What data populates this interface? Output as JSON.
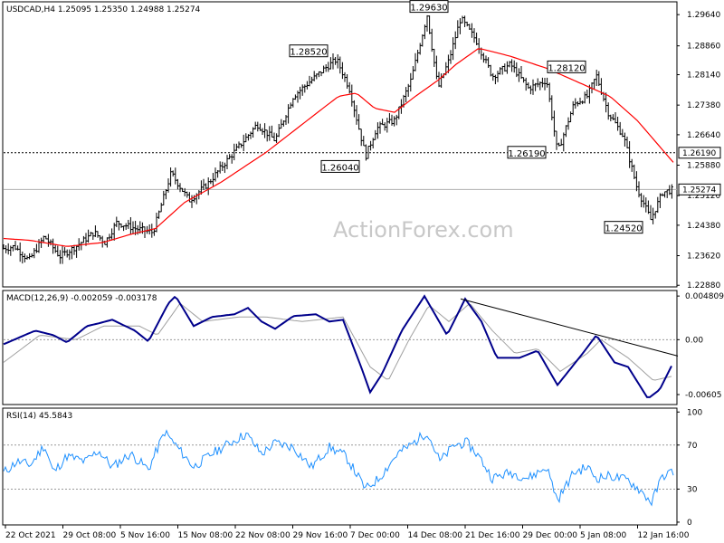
{
  "chart_data": [
    {
      "type": "ohlc",
      "title": "USDCAD,H4 1.25095 1.25350 1.24988 1.25274",
      "symbol": "USDCAD",
      "timeframe": "H4",
      "last_bar": {
        "open": 1.25095,
        "high": 1.2535,
        "low": 1.24988,
        "close": 1.25274
      },
      "ylim": [
        1.2284,
        1.2996
      ],
      "y_ticks": [
        "1.29640",
        "1.28860",
        "1.28140",
        "1.27380",
        "1.26640",
        "1.25880",
        "1.25120",
        "1.24380",
        "1.23620",
        "1.22880"
      ],
      "y_tick_values": [
        1.2964,
        1.2886,
        1.2814,
        1.2738,
        1.2664,
        1.2588,
        1.2512,
        1.2438,
        1.2362,
        1.2288
      ],
      "x_ticks": [
        "22 Oct 2021",
        "29 Oct 08:00",
        "5 Nov 16:00",
        "15 Nov 08:00",
        "22 Nov 08:00",
        "29 Nov 16:00",
        "7 Dec 00:00",
        "14 Dec 08:00",
        "21 Dec 16:00",
        "29 Dec 00:00",
        "5 Jan 08:00",
        "12 Jan 16:00"
      ],
      "price_path": [
        [
          0,
          1.238
        ],
        [
          12,
          1.2385
        ],
        [
          28,
          1.235
        ],
        [
          45,
          1.241
        ],
        [
          62,
          1.236
        ],
        [
          80,
          1.2385
        ],
        [
          100,
          1.242
        ],
        [
          112,
          1.2395
        ],
        [
          125,
          1.2445
        ],
        [
          145,
          1.243
        ],
        [
          165,
          1.242
        ],
        [
          185,
          1.2568
        ],
        [
          205,
          1.25
        ],
        [
          225,
          1.254
        ],
        [
          245,
          1.2595
        ],
        [
          262,
          1.264
        ],
        [
          280,
          1.269
        ],
        [
          300,
          1.265
        ],
        [
          320,
          1.276
        ],
        [
          340,
          1.28
        ],
        [
          355,
          1.283
        ],
        [
          368,
          1.2852
        ],
        [
          382,
          1.278
        ],
        [
          400,
          1.261
        ],
        [
          412,
          1.268
        ],
        [
          432,
          1.27
        ],
        [
          450,
          1.28
        ],
        [
          468,
          1.2963
        ],
        [
          480,
          1.278
        ],
        [
          492,
          1.285
        ],
        [
          505,
          1.2955
        ],
        [
          522,
          1.29
        ],
        [
          540,
          1.281
        ],
        [
          560,
          1.284
        ],
        [
          580,
          1.278
        ],
        [
          600,
          1.28
        ],
        [
          612,
          1.2619
        ],
        [
          630,
          1.274
        ],
        [
          645,
          1.276
        ],
        [
          655,
          1.2812
        ],
        [
          668,
          1.272
        ],
        [
          685,
          1.266
        ],
        [
          700,
          1.253
        ],
        [
          715,
          1.2452
        ],
        [
          728,
          1.252
        ],
        [
          740,
          1.2527
        ]
      ],
      "moving_average": {
        "color": "#ff0000",
        "path": [
          [
            0,
            1.2405
          ],
          [
            30,
            1.24
          ],
          [
            70,
            1.2385
          ],
          [
            110,
            1.2395
          ],
          [
            140,
            1.2415
          ],
          [
            168,
            1.243
          ],
          [
            200,
            1.2495
          ],
          [
            240,
            1.2545
          ],
          [
            290,
            1.262
          ],
          [
            330,
            1.269
          ],
          [
            370,
            1.276
          ],
          [
            390,
            1.2768
          ],
          [
            410,
            1.273
          ],
          [
            432,
            1.272
          ],
          [
            455,
            1.276
          ],
          [
            480,
            1.28
          ],
          [
            500,
            1.284
          ],
          [
            525,
            1.288
          ],
          [
            560,
            1.286
          ],
          [
            600,
            1.283
          ],
          [
            640,
            1.279
          ],
          [
            670,
            1.276
          ],
          [
            700,
            1.27
          ],
          [
            740,
            1.2595
          ]
        ]
      },
      "horizontal_levels": [
        {
          "value": 1.2619,
          "label": "1.26190",
          "style": "dotted"
        },
        {
          "value": 1.25274,
          "label": "1.25274",
          "style": "solid"
        }
      ],
      "annotations": [
        "1.28520",
        "1.29630",
        "1.26040",
        "1.28120",
        "1.26190",
        "1.24520"
      ],
      "watermark": "ActionForex.com"
    },
    {
      "type": "line",
      "title": "MACD(12,26,9) -0.002059 -0.003178",
      "ylim": [
        -0.00715,
        0.00542
      ],
      "y_ticks": [
        "0.004809",
        "0.00",
        "-0.00605"
      ],
      "y_tick_values": [
        0.004809,
        0.0,
        -0.00605
      ],
      "series": [
        {
          "color": "#00008b",
          "path": [
            [
              0,
              -0.0005
            ],
            [
              35,
              0.001
            ],
            [
              55,
              0.0005
            ],
            [
              70,
              -0.0003
            ],
            [
              92,
              0.0015
            ],
            [
              105,
              0.0018
            ],
            [
              120,
              0.0022
            ],
            [
              145,
              0.001
            ],
            [
              160,
              -0.0002
            ],
            [
              182,
              0.004
            ],
            [
              190,
              0.0048
            ],
            [
              210,
              0.0015
            ],
            [
              230,
              0.0025
            ],
            [
              255,
              0.0028
            ],
            [
              270,
              0.0035
            ],
            [
              285,
              0.002
            ],
            [
              300,
              0.0012
            ],
            [
              320,
              0.0026
            ],
            [
              345,
              0.0028
            ],
            [
              360,
              0.002
            ],
            [
              375,
              0.0022
            ],
            [
              395,
              -0.003
            ],
            [
              405,
              -0.0058
            ],
            [
              418,
              -0.0038
            ],
            [
              440,
              0.001
            ],
            [
              465,
              0.0048
            ],
            [
              490,
              0.0005
            ],
            [
              510,
              0.0045
            ],
            [
              528,
              0.002
            ],
            [
              545,
              -0.002
            ],
            [
              570,
              -0.002
            ],
            [
              590,
              -0.0012
            ],
            [
              612,
              -0.005
            ],
            [
              640,
              -0.0015
            ],
            [
              655,
              0.0005
            ],
            [
              675,
              -0.0025
            ],
            [
              690,
              -0.003
            ],
            [
              712,
              -0.0065
            ],
            [
              725,
              -0.0055
            ],
            [
              740,
              -0.0025
            ]
          ]
        },
        {
          "color": "#a0a0a0",
          "path": [
            [
              0,
              -0.0025
            ],
            [
              40,
              0.0005
            ],
            [
              80,
              0.0
            ],
            [
              110,
              0.0015
            ],
            [
              150,
              0.0015
            ],
            [
              170,
              0.0005
            ],
            [
              195,
              0.004
            ],
            [
              220,
              0.002
            ],
            [
              260,
              0.0025
            ],
            [
              290,
              0.0025
            ],
            [
              330,
              0.002
            ],
            [
              375,
              0.0025
            ],
            [
              405,
              -0.003
            ],
            [
              425,
              -0.0045
            ],
            [
              448,
              0.0
            ],
            [
              470,
              0.0038
            ],
            [
              492,
              0.002
            ],
            [
              515,
              0.004
            ],
            [
              540,
              0.001
            ],
            [
              565,
              -0.0015
            ],
            [
              590,
              -0.001
            ],
            [
              615,
              -0.0035
            ],
            [
              645,
              -0.0015
            ],
            [
              660,
              0.0
            ],
            [
              690,
              -0.002
            ],
            [
              718,
              -0.0045
            ],
            [
              740,
              -0.004
            ]
          ]
        }
      ],
      "trendline": {
        "from": [
          505,
          0.0045
        ],
        "to": [
          745,
          -0.0018
        ],
        "color": "#000000"
      }
    },
    {
      "type": "line",
      "title": "RSI(14) 45.5843",
      "last_value": 45.5843,
      "ylim": [
        -2.5,
        103.5
      ],
      "y_ticks": [
        "100",
        "70",
        "30",
        "0"
      ],
      "y_tick_values": [
        100,
        70,
        30,
        0
      ],
      "reference_lines": [
        70,
        30
      ],
      "series": [
        {
          "color": "#1e90ff",
          "path": [
            [
              0,
              45
            ],
            [
              15,
              55
            ],
            [
              30,
              52
            ],
            [
              45,
              70
            ],
            [
              55,
              45
            ],
            [
              70,
              60
            ],
            [
              90,
              55
            ],
            [
              105,
              65
            ],
            [
              120,
              50
            ],
            [
              140,
              62
            ],
            [
              160,
              48
            ],
            [
              178,
              82
            ],
            [
              190,
              70
            ],
            [
              210,
              50
            ],
            [
              230,
              62
            ],
            [
              250,
              72
            ],
            [
              268,
              80
            ],
            [
              285,
              62
            ],
            [
              300,
              72
            ],
            [
              320,
              68
            ],
            [
              340,
              50
            ],
            [
              360,
              68
            ],
            [
              378,
              60
            ],
            [
              400,
              30
            ],
            [
              415,
              40
            ],
            [
              435,
              62
            ],
            [
              450,
              70
            ],
            [
              468,
              82
            ],
            [
              482,
              55
            ],
            [
              498,
              70
            ],
            [
              512,
              72
            ],
            [
              525,
              60
            ],
            [
              540,
              40
            ],
            [
              560,
              45
            ],
            [
              580,
              40
            ],
            [
              600,
              50
            ],
            [
              612,
              20
            ],
            [
              630,
              45
            ],
            [
              645,
              50
            ],
            [
              655,
              40
            ],
            [
              670,
              42
            ],
            [
              690,
              38
            ],
            [
              702,
              30
            ],
            [
              716,
              18
            ],
            [
              728,
              42
            ],
            [
              740,
              46
            ]
          ]
        }
      ]
    }
  ]
}
